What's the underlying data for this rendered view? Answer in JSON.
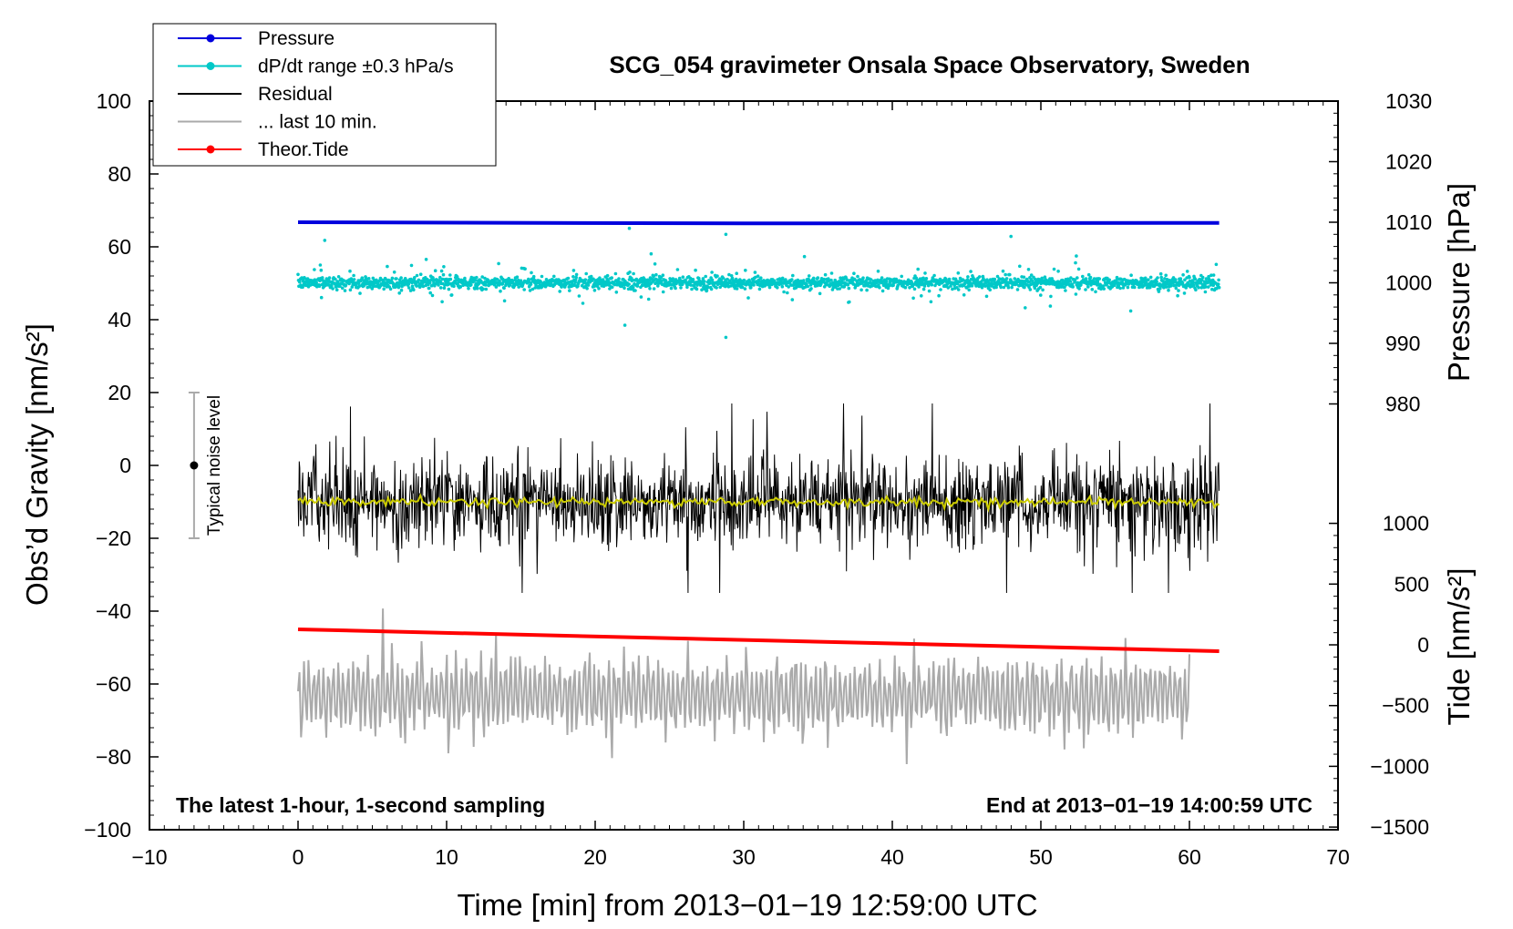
{
  "chart_data": {
    "type": "line",
    "title": "SCG_054 gravimeter Onsala Space Observatory, Sweden",
    "xlabel": "Time [min] from 2013−01−19 12:59:00 UTC",
    "ylabel": "Obs’d Gravity [nm/s²]",
    "ylabel_right_top": "Pressure [hPa]",
    "ylabel_right_bottom": "Tide [nm/s²]",
    "xlim": [
      -10,
      70
    ],
    "ylim": [
      -100,
      100
    ],
    "pressure_axis_range": [
      980,
      1030
    ],
    "tide_axis_range": [
      -1500,
      1000
    ],
    "x_ticks": [
      "−10",
      "0",
      "10",
      "20",
      "30",
      "40",
      "50",
      "60",
      "70"
    ],
    "y_ticks": [
      "−100",
      "−80",
      "−60",
      "−40",
      "−20",
      "0",
      "20",
      "40",
      "60",
      "80",
      "100"
    ],
    "pressure_ticks": [
      "980",
      "990",
      "1000",
      "1010",
      "1020",
      "1030"
    ],
    "tide_ticks": [
      "−1500",
      "−1000",
      "−500",
      "0",
      "500",
      "1000"
    ],
    "annotations": {
      "bottom_left": "The latest 1-hour, 1-second sampling",
      "bottom_right": "End at 2013−01−19 14:00:59 UTC",
      "noise": "Typical noise level"
    },
    "noise_bar": {
      "x": -7,
      "center": 0,
      "low": -20,
      "high": 20
    },
    "legend": [
      {
        "label": "Pressure",
        "color": "#0000dd",
        "marker": true
      },
      {
        "label": "dP/dt range ±0.3 hPa/s",
        "color": "#00c8c8",
        "marker": true
      },
      {
        "label": "Residual",
        "color": "#000000",
        "marker": false
      },
      {
        "label": "... last 10 min.",
        "color": "#aaaaaa",
        "marker": false
      },
      {
        "label": "Theor.Tide",
        "color": "#ff0000",
        "marker": true
      }
    ],
    "series": [
      {
        "name": "Pressure",
        "axis": "pressure_hPa",
        "color": "#0000dd",
        "x": [
          0,
          30,
          62
        ],
        "y": [
          1010.0,
          1009.8,
          1009.9
        ]
      },
      {
        "name": "dP/dt range ±0.3 hPa/s",
        "axis": "pressure_hPa",
        "color": "#00c8c8",
        "x_range": [
          0,
          62
        ],
        "center": 1000,
        "spread": 1.5,
        "outliers": [
          [
            22,
            993
          ],
          [
            28.8,
            991
          ],
          [
            1.8,
            1007
          ],
          [
            22.3,
            1009
          ],
          [
            28.8,
            1008
          ]
        ]
      },
      {
        "name": "Residual",
        "axis": "gravity",
        "color": "#000000",
        "x_range": [
          0,
          62
        ],
        "center": -10,
        "spread": 7,
        "min": -35,
        "max": 17
      },
      {
        "name": "Residual mean",
        "axis": "gravity",
        "color": "#cccc00",
        "x_range": [
          0,
          62
        ],
        "center": -10
      },
      {
        "name": "... last 10 min.",
        "axis": "gravity",
        "color": "#aaaaaa",
        "x_range": [
          0,
          60
        ],
        "center": -63,
        "spread": 6,
        "min": -82,
        "max": -36
      },
      {
        "name": "Theor.Tide",
        "axis": "gravity",
        "color": "#ff0000",
        "x": [
          0,
          62
        ],
        "y": [
          -45,
          -51
        ]
      }
    ],
    "grid": false,
    "legend_position": "top-left"
  }
}
